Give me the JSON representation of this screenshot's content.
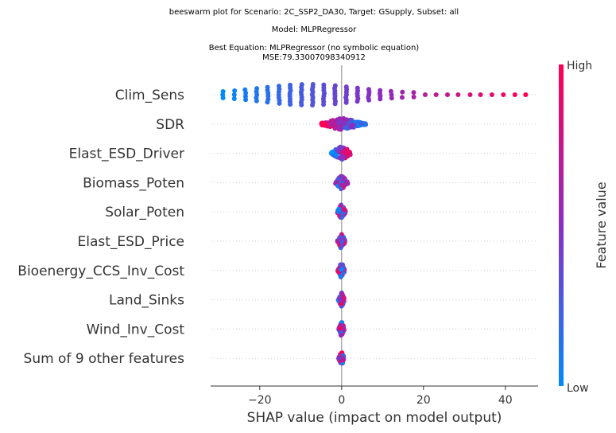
{
  "chart_data": {
    "type": "scatter",
    "title_lines": [
      "beeswarm plot for Scenario: 2C_SSP2_DA30, Target: GSupply, Subset: all",
      "Model: MLPRegressor",
      "Best Equation: MLPRegressor (no symbolic equation)",
      "MSE:79.33007098340912"
    ],
    "xlabel": "SHAP value (impact on model output)",
    "xlim": [
      -32,
      48
    ],
    "xticks": [
      -20,
      0,
      20,
      40
    ],
    "xtick_labels": [
      "−20",
      "0",
      "20",
      "40"
    ],
    "features": [
      "Clim_Sens",
      "SDR",
      "Elast_ESD_Driver",
      "Biomass_Poten",
      "Solar_Poten",
      "Elast_ESD_Price",
      "Bioenergy_CCS_Inv_Cost",
      "Land_Sinks",
      "Wind_Inv_Cost",
      "Sum of 9 other features"
    ],
    "feature_spread": [
      [
        -29,
        45
      ],
      [
        -5,
        6
      ],
      [
        -2.5,
        2.5
      ],
      [
        -1.5,
        1.5
      ],
      [
        -1,
        1
      ],
      [
        -1,
        0.8
      ],
      [
        -0.9,
        0.7
      ],
      [
        -0.8,
        0.6
      ],
      [
        -0.7,
        0.6
      ],
      [
        -0.7,
        0.5
      ]
    ],
    "colorbar": {
      "label": "Feature value",
      "high_label": "High",
      "low_label": "Low",
      "low_color": "#008bfb",
      "mid_color": "#8a2ec2",
      "high_color": "#ff0052"
    },
    "grid": "horizontal dotted rows",
    "legend": "colorbar right"
  }
}
